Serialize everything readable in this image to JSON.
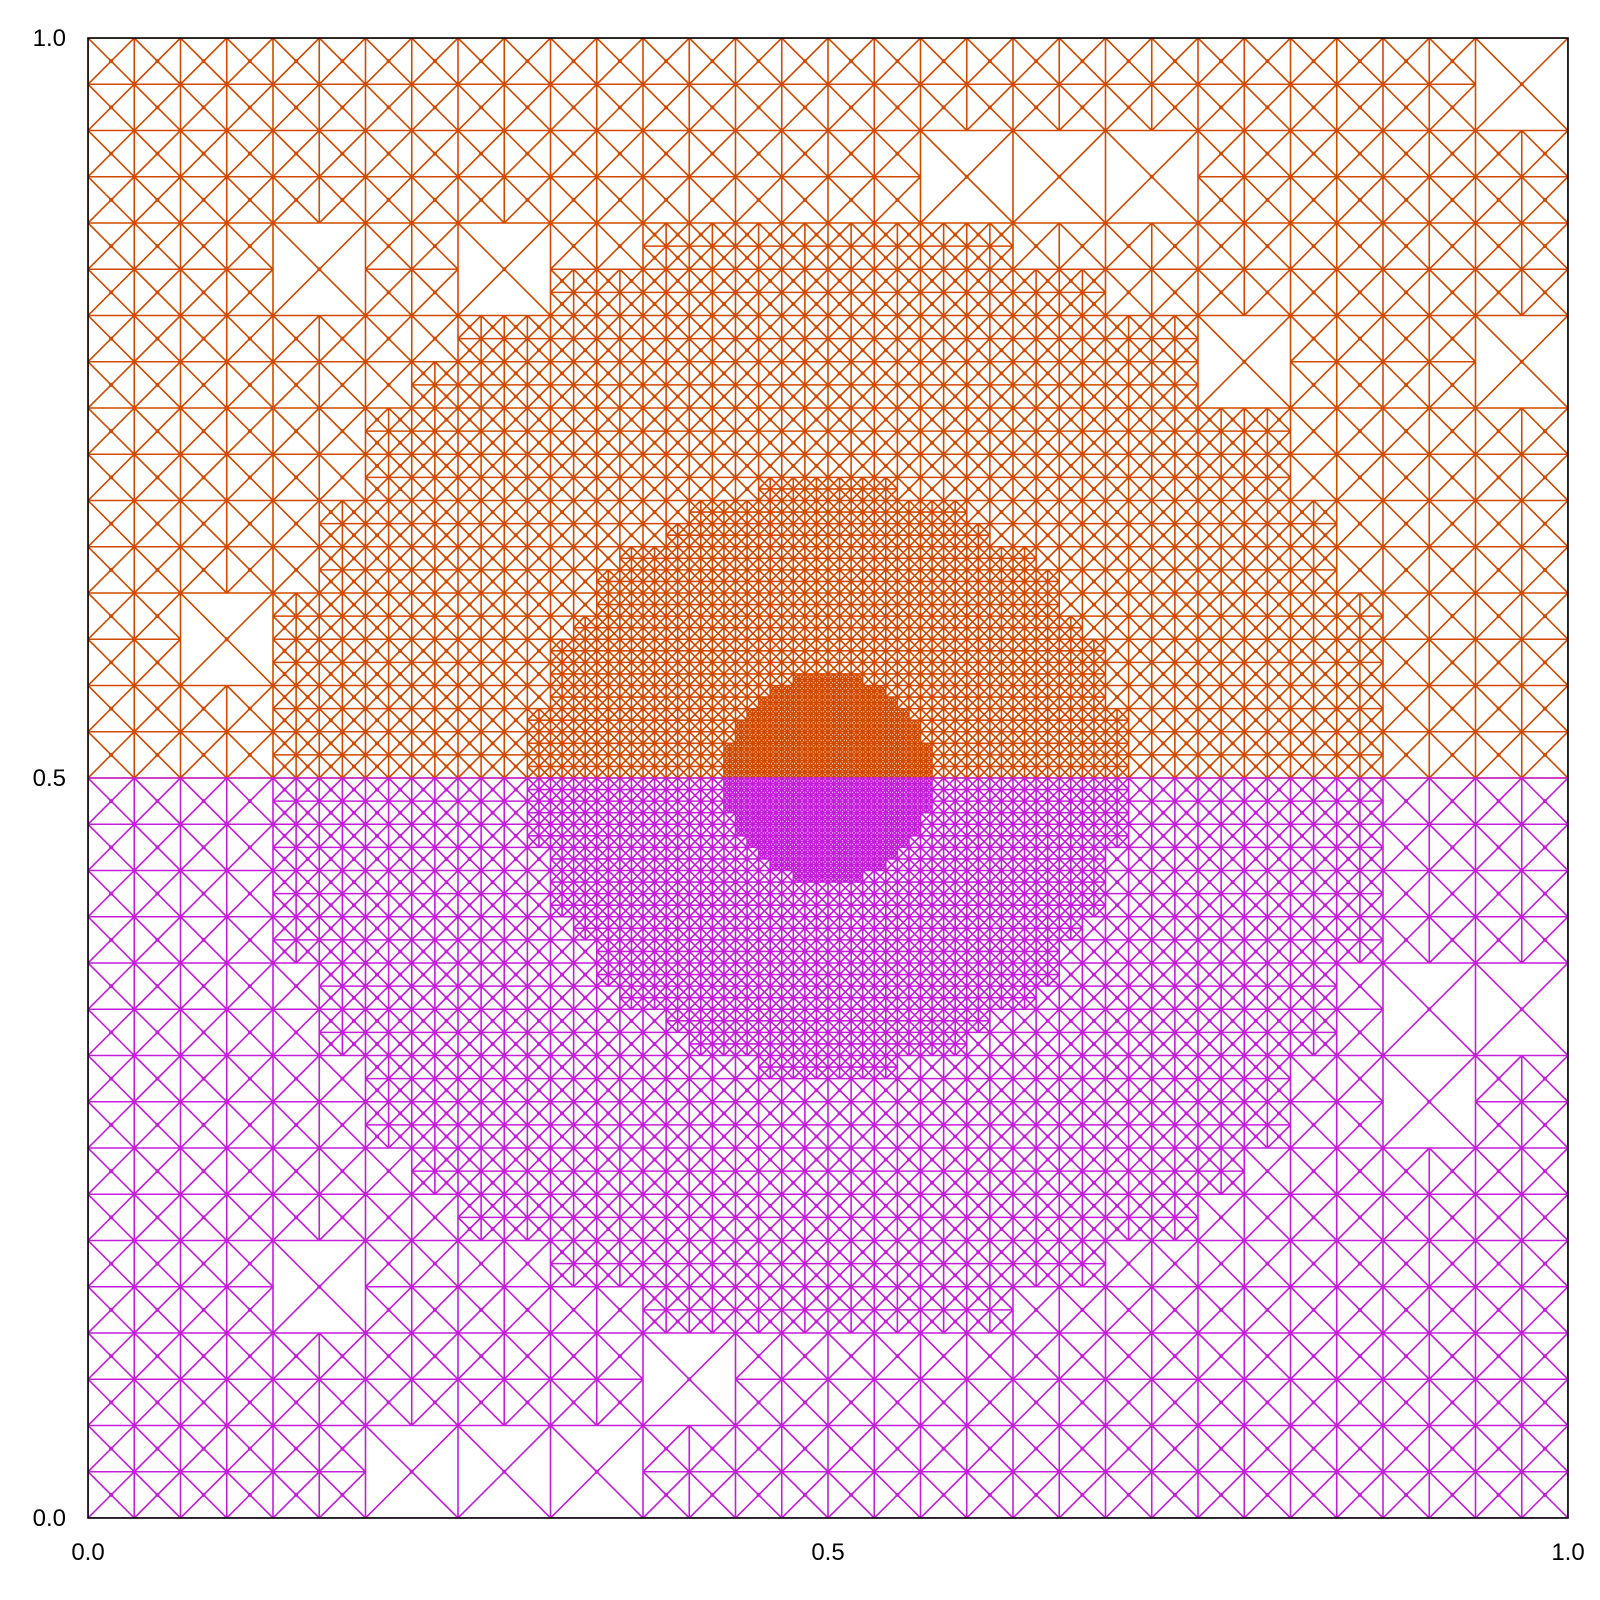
{
  "figure": {
    "type": "triangular-mesh",
    "x_domain": [
      0,
      1
    ],
    "y_domain": [
      0,
      1
    ],
    "x_ticks": [
      {
        "value": 0.0,
        "label": "0.0"
      },
      {
        "value": 0.5,
        "label": "0.5"
      },
      {
        "value": 1.0,
        "label": "1.0"
      }
    ],
    "y_ticks": [
      {
        "value": 0.0,
        "label": "0.0"
      },
      {
        "value": 0.5,
        "label": "0.5"
      },
      {
        "value": 1.0,
        "label": "1.0"
      }
    ],
    "regions": [
      {
        "id": "upper",
        "y_range": [
          0.5,
          1.0
        ],
        "color": "#d24a00"
      },
      {
        "id": "lower",
        "y_range": [
          0.0,
          0.5
        ],
        "color": "#c51edb"
      }
    ],
    "refinement_center": [
      0.5,
      0.5
    ]
  }
}
